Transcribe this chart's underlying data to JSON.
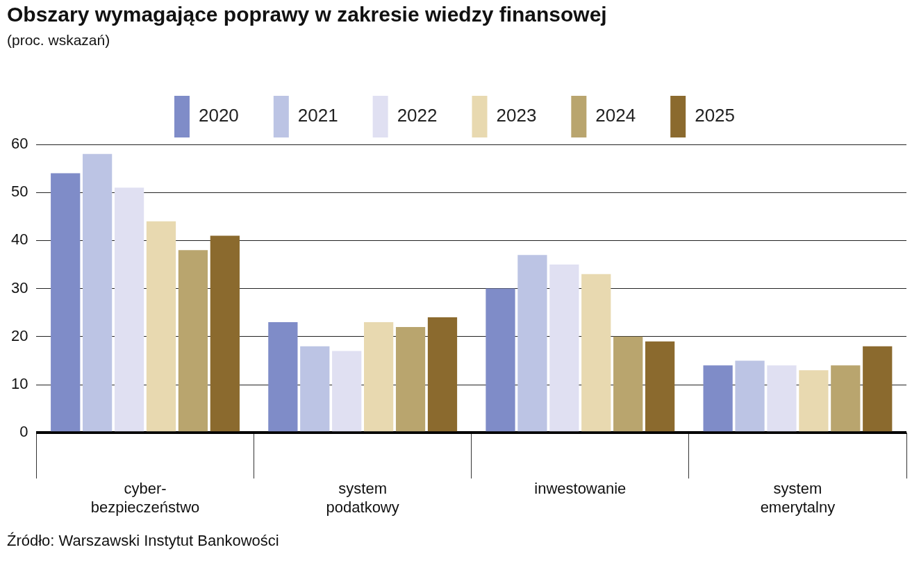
{
  "chart_data": {
    "type": "bar",
    "title": "Obszary wymagające poprawy w zakresie wiedzy finansowej",
    "subtitle": "(proc. wskazań)",
    "categories": [
      "cyber- bezpieczeństwo",
      "system podatkowy",
      "inwestowanie",
      "system emerytalny"
    ],
    "series": [
      {
        "name": "2020",
        "color": "#7f8cc8",
        "values": [
          54,
          23,
          30,
          14
        ]
      },
      {
        "name": "2021",
        "color": "#bcc4e4",
        "values": [
          58,
          18,
          37,
          15
        ]
      },
      {
        "name": "2022",
        "color": "#e0e0f2",
        "values": [
          51,
          17,
          35,
          14
        ]
      },
      {
        "name": "2023",
        "color": "#e8d9b0",
        "values": [
          44,
          23,
          33,
          13
        ]
      },
      {
        "name": "2024",
        "color": "#b9a56e",
        "values": [
          38,
          22,
          20,
          14
        ]
      },
      {
        "name": "2025",
        "color": "#8b6a2e",
        "values": [
          41,
          24,
          19,
          18
        ]
      }
    ],
    "ylim": [
      0,
      60
    ],
    "yticks": [
      0,
      10,
      20,
      30,
      40,
      50,
      60
    ],
    "grid": "y",
    "legend": "top",
    "annotations": [
      "Źródło: Warszawski Instytut Bankowości"
    ]
  }
}
